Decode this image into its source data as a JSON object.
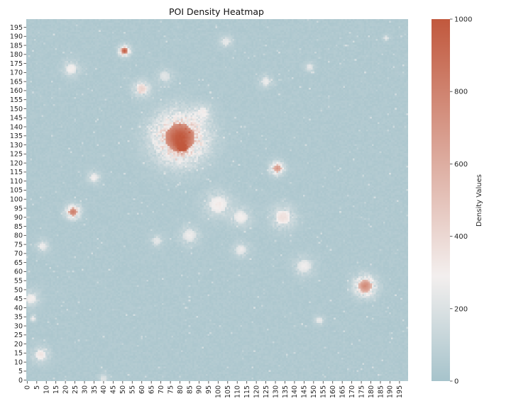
{
  "chart_data": {
    "type": "heatmap",
    "title": "POI Density Heatmap",
    "xlabel": "",
    "ylabel": "",
    "grid_size": [
      200,
      200
    ],
    "x_tick_labels": [
      "0",
      "5",
      "10",
      "15",
      "20",
      "25",
      "30",
      "35",
      "40",
      "45",
      "50",
      "55",
      "60",
      "65",
      "70",
      "75",
      "80",
      "85",
      "90",
      "95",
      "100",
      "105",
      "110",
      "115",
      "120",
      "125",
      "130",
      "135",
      "140",
      "145",
      "150",
      "155",
      "160",
      "165",
      "170",
      "175",
      "180",
      "185",
      "190",
      "195"
    ],
    "y_tick_labels": [
      "0",
      "5",
      "10",
      "15",
      "20",
      "25",
      "30",
      "35",
      "40",
      "45",
      "50",
      "55",
      "60",
      "65",
      "70",
      "75",
      "80",
      "85",
      "90",
      "95",
      "100",
      "105",
      "110",
      "115",
      "120",
      "125",
      "130",
      "135",
      "140",
      "145",
      "150",
      "155",
      "160",
      "165",
      "170",
      "175",
      "180",
      "185",
      "190",
      "195"
    ],
    "colorbar": {
      "label": "Density Values",
      "range": [
        0,
        1000
      ],
      "ticks": [
        "0",
        "200",
        "400",
        "600",
        "800",
        "1000"
      ],
      "colors": [
        "#a6c3cb",
        "#f3efee",
        "#c1583d"
      ]
    },
    "background_value": 40,
    "hotspots": [
      {
        "x": 80,
        "y": 134,
        "peak": 960,
        "radius": 14
      },
      {
        "x": 51,
        "y": 182,
        "peak": 920,
        "radius": 3
      },
      {
        "x": 24,
        "y": 93,
        "peak": 780,
        "radius": 4
      },
      {
        "x": 177,
        "y": 52,
        "peak": 720,
        "radius": 6
      },
      {
        "x": 131,
        "y": 117,
        "peak": 650,
        "radius": 4
      },
      {
        "x": 81,
        "y": 128,
        "peak": 700,
        "radius": 3
      },
      {
        "x": 60,
        "y": 161,
        "peak": 380,
        "radius": 5
      },
      {
        "x": 134,
        "y": 90,
        "peak": 330,
        "radius": 7
      },
      {
        "x": 7,
        "y": 14,
        "peak": 300,
        "radius": 5
      },
      {
        "x": 2,
        "y": 45,
        "peak": 260,
        "radius": 5
      },
      {
        "x": 100,
        "y": 97,
        "peak": 280,
        "radius": 8
      },
      {
        "x": 112,
        "y": 90,
        "peak": 250,
        "radius": 6
      },
      {
        "x": 145,
        "y": 63,
        "peak": 240,
        "radius": 6
      },
      {
        "x": 23,
        "y": 172,
        "peak": 260,
        "radius": 5
      },
      {
        "x": 35,
        "y": 112,
        "peak": 240,
        "radius": 4
      },
      {
        "x": 8,
        "y": 74,
        "peak": 230,
        "radius": 4
      },
      {
        "x": 112,
        "y": 72,
        "peak": 220,
        "radius": 5
      },
      {
        "x": 85,
        "y": 80,
        "peak": 220,
        "radius": 6
      },
      {
        "x": 125,
        "y": 165,
        "peak": 220,
        "radius": 4
      },
      {
        "x": 153,
        "y": 33,
        "peak": 220,
        "radius": 3
      },
      {
        "x": 104,
        "y": 187,
        "peak": 200,
        "radius": 4
      },
      {
        "x": 148,
        "y": 173,
        "peak": 200,
        "radius": 3
      },
      {
        "x": 3,
        "y": 34,
        "peak": 240,
        "radius": 2
      },
      {
        "x": 68,
        "y": 77,
        "peak": 190,
        "radius": 4
      },
      {
        "x": 188,
        "y": 189,
        "peak": 190,
        "radius": 2
      },
      {
        "x": 72,
        "y": 168,
        "peak": 180,
        "radius": 5
      },
      {
        "x": 92,
        "y": 148,
        "peak": 200,
        "radius": 5
      },
      {
        "x": 40,
        "y": 1,
        "peak": 180,
        "radius": 3
      }
    ]
  }
}
